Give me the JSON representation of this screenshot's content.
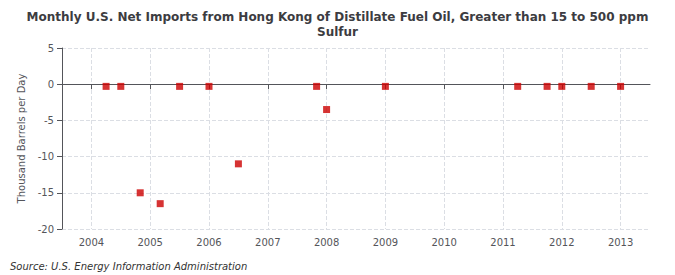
{
  "chart_data": {
    "type": "scatter",
    "title": "Monthly U.S. Net Imports from Hong Kong of Distillate Fuel Oil, Greater than 15 to 500 ppm\nSulfur",
    "ylabel": "Thousand Barrels per Day",
    "annotations": [
      "Source: U.S. Energy Information Administration"
    ],
    "x": [
      2004.25,
      2004.5,
      2004.83,
      2005.17,
      2005.5,
      2006.0,
      2006.5,
      2007.83,
      2008.0,
      2009.0,
      2011.25,
      2011.75,
      2012.0,
      2012.5,
      2013.0
    ],
    "values": [
      -0.3,
      -0.3,
      -15.0,
      -16.5,
      -0.3,
      -0.3,
      -11.0,
      -0.3,
      -3.5,
      -0.3,
      -0.3,
      -0.3,
      -0.3,
      -0.3,
      -0.3
    ],
    "color": "#cc0000",
    "marker": "square",
    "xlim": [
      2003.5,
      2013.5
    ],
    "ylim": [
      -20,
      5
    ],
    "xticks": [
      2004,
      2005,
      2006,
      2007,
      2008,
      2009,
      2010,
      2011,
      2012,
      2013
    ],
    "yticks": [
      -20,
      -15,
      -10,
      -5,
      0,
      5
    ],
    "grid": true
  }
}
